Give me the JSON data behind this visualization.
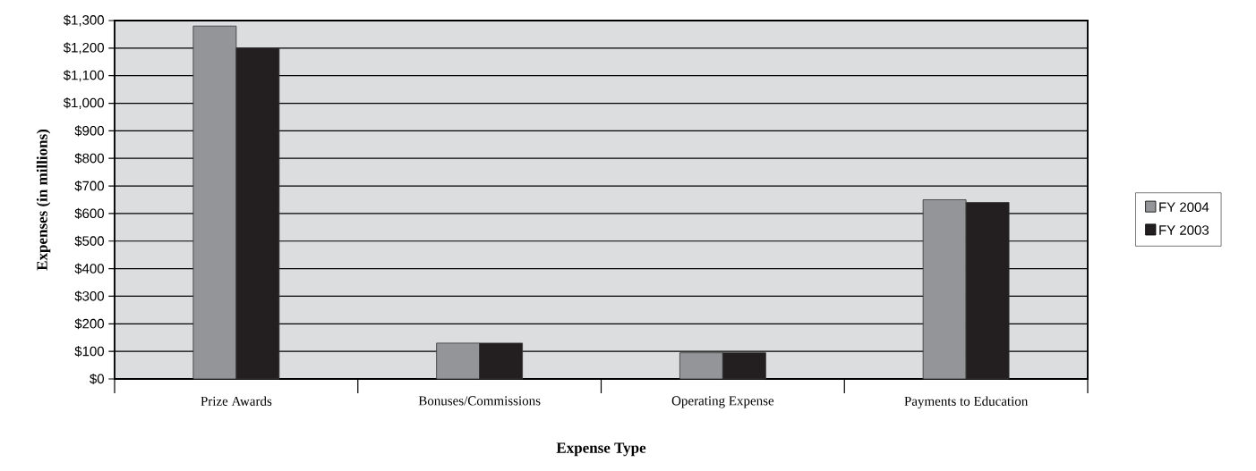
{
  "chart_data": {
    "type": "bar",
    "xlabel": "Expense Type",
    "ylabel": "Expenses (in millions)",
    "categories": [
      "Prize Awards",
      "Bonuses/Commissions",
      "Operating Expense",
      "Payments to Education"
    ],
    "series": [
      {
        "name": "FY 2004",
        "color": "#939598",
        "values": [
          1280,
          130,
          95,
          650
        ]
      },
      {
        "name": "FY 2003",
        "color": "#231f20",
        "values": [
          1200,
          130,
          95,
          640
        ]
      }
    ],
    "ylim": [
      0,
      1300
    ],
    "yticks": [
      {
        "value": 0,
        "label": "$0"
      },
      {
        "value": 100,
        "label": "$100"
      },
      {
        "value": 200,
        "label": "$200"
      },
      {
        "value": 300,
        "label": "$300"
      },
      {
        "value": 400,
        "label": "$400"
      },
      {
        "value": 500,
        "label": "$500"
      },
      {
        "value": 600,
        "label": "$600"
      },
      {
        "value": 700,
        "label": "$700"
      },
      {
        "value": 800,
        "label": "$800"
      },
      {
        "value": 900,
        "label": "$900"
      },
      {
        "value": 1000,
        "label": "$1,000"
      },
      {
        "value": 1100,
        "label": "$1,100"
      },
      {
        "value": 1200,
        "label": "$1,200"
      },
      {
        "value": 1300,
        "label": "$1,300"
      }
    ],
    "grid": "y",
    "legend": "right"
  }
}
